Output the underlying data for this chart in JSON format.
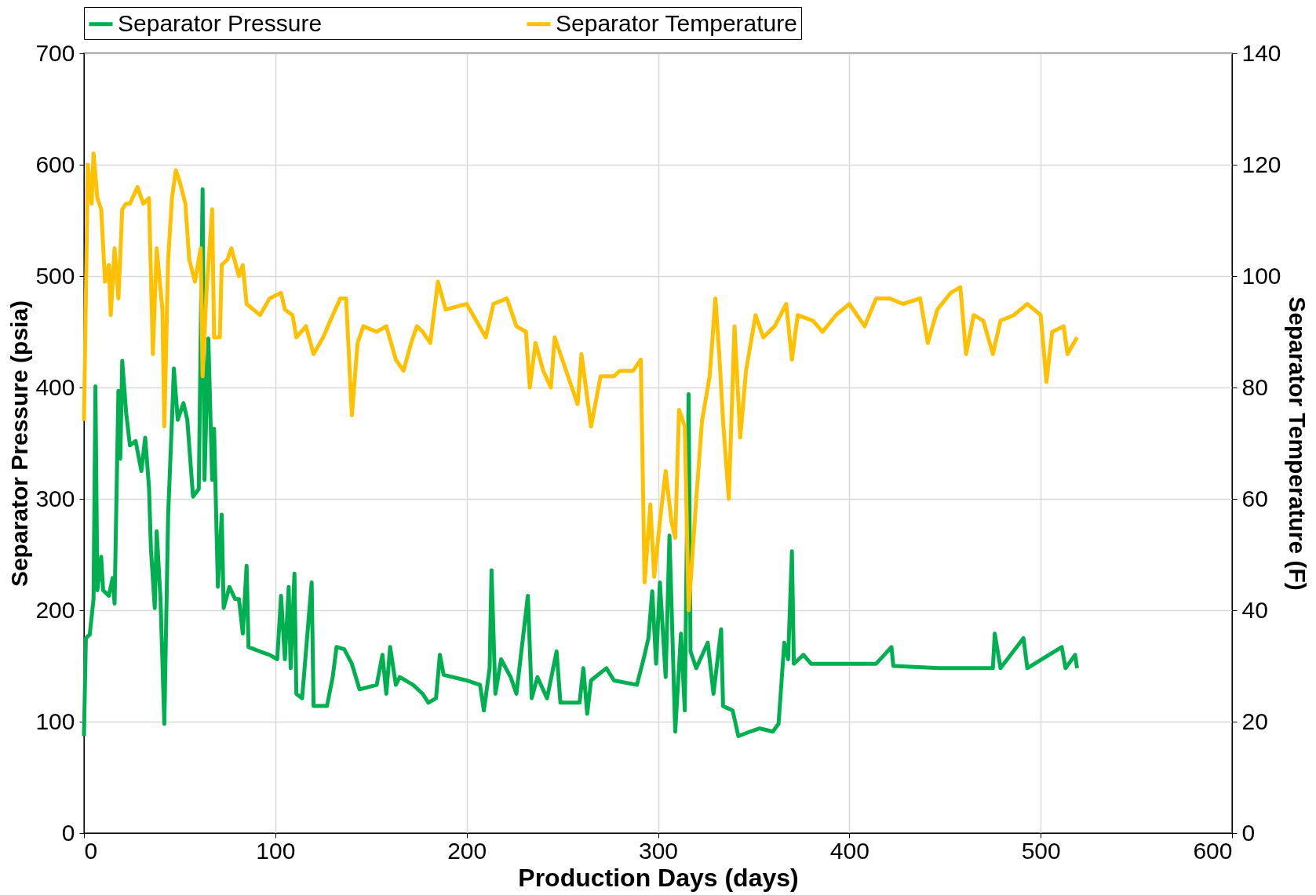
{
  "chart_data": {
    "type": "line",
    "xlabel": "Production Days (days)",
    "ylabel": "Separator Pressure (psia)",
    "y2label": "Separator Temperature (F)",
    "xlim": [
      0,
      600
    ],
    "xticks": [
      0,
      100,
      200,
      300,
      400,
      500,
      600
    ],
    "ylim": [
      0,
      700
    ],
    "yticks": [
      0,
      100,
      200,
      300,
      400,
      500,
      600,
      700
    ],
    "y2lim": [
      0,
      140
    ],
    "y2ticks": [
      0,
      20,
      40,
      60,
      80,
      100,
      120,
      140
    ],
    "grid": true,
    "legend": "top",
    "marker": "none",
    "line_style": "solid",
    "series": [
      {
        "name": "Separator Pressure",
        "color": "#00b050",
        "x": [
          0,
          1,
          3,
          5,
          6,
          7,
          9,
          10,
          13,
          15,
          16,
          18,
          19,
          20,
          22,
          24,
          27,
          30,
          32,
          34,
          35,
          37,
          38,
          40,
          42,
          44,
          46,
          47,
          49,
          52,
          54,
          57,
          60,
          62,
          63,
          65,
          67,
          68,
          70,
          72,
          73,
          76,
          79,
          81,
          83,
          85,
          86,
          92,
          97,
          101,
          103,
          105,
          107,
          108,
          110,
          111,
          114,
          119,
          120,
          127,
          130,
          132,
          136,
          140,
          144,
          153,
          156,
          158,
          160,
          163,
          165,
          172,
          177,
          180,
          184,
          186,
          188,
          200,
          207,
          209,
          212,
          213,
          215,
          218,
          223,
          226,
          232,
          234,
          237,
          242,
          247,
          249,
          259,
          261,
          263,
          265,
          273,
          277,
          289,
          293,
          295,
          297,
          299,
          301,
          304,
          306,
          309,
          312,
          314,
          316,
          317,
          320,
          326,
          329,
          333,
          334,
          339,
          342,
          348,
          353,
          360,
          363,
          366,
          368,
          370,
          371,
          376,
          380,
          400,
          414,
          422,
          423,
          447,
          475,
          476,
          479,
          491,
          493,
          511,
          513,
          518,
          519
        ],
        "values": [
          87,
          175,
          178,
          210,
          401,
          218,
          248,
          218,
          213,
          229,
          206,
          397,
          336,
          424,
          378,
          348,
          352,
          325,
          355,
          310,
          255,
          202,
          271,
          210,
          98,
          286,
          371,
          417,
          371,
          386,
          371,
          302,
          309,
          578,
          317,
          444,
          317,
          363,
          221,
          286,
          202,
          221,
          210,
          210,
          179,
          240,
          167,
          163,
          160,
          156,
          213,
          156,
          221,
          148,
          233,
          125,
          121,
          225,
          114,
          114,
          140,
          167,
          165,
          152,
          129,
          133,
          160,
          125,
          167,
          133,
          140,
          133,
          125,
          117,
          121,
          160,
          142,
          137,
          133,
          110,
          148,
          236,
          125,
          156,
          140,
          125,
          213,
          121,
          140,
          121,
          163,
          117,
          117,
          148,
          107,
          137,
          148,
          137,
          133,
          160,
          175,
          217,
          152,
          225,
          140,
          267,
          91,
          179,
          110,
          394,
          163,
          148,
          171,
          125,
          183,
          114,
          110,
          87,
          91,
          94,
          91,
          98,
          171,
          156,
          253,
          152,
          160,
          152,
          152,
          152,
          167,
          150,
          148,
          148,
          179,
          148,
          175,
          148,
          167,
          148,
          160,
          148
        ]
      },
      {
        "name": "Separator Temperature",
        "color": "#ffc000",
        "axis": "y2",
        "x": [
          0,
          1,
          2,
          4,
          5,
          7,
          9,
          11,
          13,
          14,
          16,
          18,
          20,
          22,
          24,
          28,
          31,
          34,
          36,
          38,
          41,
          42,
          44,
          46,
          48,
          50,
          53,
          55,
          58,
          61,
          62,
          64,
          67,
          68,
          71,
          72,
          75,
          77,
          81,
          83,
          85,
          92,
          97,
          103,
          105,
          109,
          111,
          116,
          120,
          125,
          130,
          134,
          137,
          140,
          143,
          146,
          153,
          158,
          163,
          167,
          171,
          174,
          177,
          181,
          185,
          189,
          200,
          210,
          214,
          221,
          226,
          231,
          233,
          236,
          240,
          244,
          246,
          252,
          258,
          260,
          265,
          270,
          277,
          280,
          287,
          291,
          293,
          296,
          298,
          301,
          304,
          307,
          309,
          311,
          314,
          316,
          320,
          323,
          327,
          330,
          332,
          334,
          337,
          340,
          343,
          346,
          351,
          355,
          361,
          367,
          370,
          373,
          381,
          386,
          393,
          400,
          408,
          414,
          421,
          428,
          437,
          441,
          446,
          453,
          458,
          461,
          465,
          470,
          475,
          479,
          486,
          493,
          500,
          503,
          506,
          512,
          514,
          519
        ],
        "values": [
          74,
          96,
          120,
          113,
          122,
          114,
          112,
          99,
          102,
          93,
          105,
          96,
          112,
          113,
          113,
          116,
          113,
          114,
          86,
          105,
          94,
          73,
          103,
          114,
          119,
          117,
          113,
          103,
          99,
          105,
          82,
          97,
          112,
          89,
          89,
          102,
          103,
          105,
          100,
          102,
          95,
          93,
          96,
          97,
          94,
          93,
          89,
          91,
          86,
          89,
          93,
          96,
          96,
          75,
          88,
          91,
          90,
          91,
          85,
          83,
          88,
          91,
          90,
          88,
          99,
          94,
          95,
          89,
          95,
          96,
          91,
          90,
          80,
          88,
          83,
          80,
          89,
          83,
          77,
          86,
          73,
          82,
          82,
          83,
          83,
          85,
          45,
          59,
          46,
          56,
          65,
          56,
          53,
          76,
          73,
          40,
          60,
          74,
          82,
          96,
          86,
          74,
          60,
          91,
          71,
          83,
          93,
          89,
          91,
          95,
          85,
          93,
          92,
          90,
          93,
          95,
          91,
          96,
          96,
          95,
          96,
          88,
          94,
          97,
          98,
          86,
          93,
          92,
          86,
          92,
          93,
          95,
          93,
          81,
          90,
          91,
          86,
          89
        ]
      }
    ]
  }
}
